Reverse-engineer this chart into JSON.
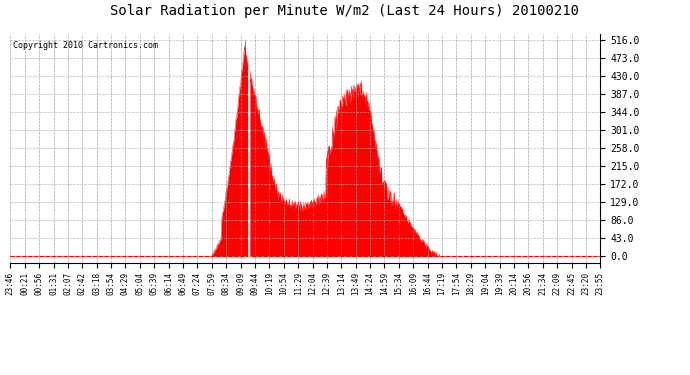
{
  "title": "Solar Radiation per Minute W/m2 (Last 24 Hours) 20100210",
  "copyright": "Copyright 2010 Cartronics.com",
  "fill_color": "#FF0000",
  "line_color": "#FF0000",
  "background_color": "#FFFFFF",
  "grid_color": "#888888",
  "dashed_line_color": "#FF0000",
  "yticks": [
    0.0,
    43.0,
    86.0,
    129.0,
    172.0,
    215.0,
    258.0,
    301.0,
    344.0,
    387.0,
    430.0,
    473.0,
    516.0
  ],
  "ymax": 530,
  "ymin": -15,
  "n_points": 1440,
  "xtick_labels": [
    "23:46",
    "00:21",
    "00:56",
    "01:31",
    "02:07",
    "02:42",
    "03:18",
    "03:54",
    "04:29",
    "05:04",
    "05:39",
    "06:14",
    "06:49",
    "07:24",
    "07:59",
    "08:34",
    "09:09",
    "09:44",
    "10:19",
    "10:54",
    "11:29",
    "12:04",
    "12:39",
    "13:14",
    "13:49",
    "14:24",
    "14:59",
    "15:34",
    "16:09",
    "16:44",
    "17:19",
    "17:54",
    "18:29",
    "19:04",
    "19:39",
    "20:14",
    "20:56",
    "21:34",
    "22:09",
    "22:45",
    "23:20",
    "23:55"
  ]
}
